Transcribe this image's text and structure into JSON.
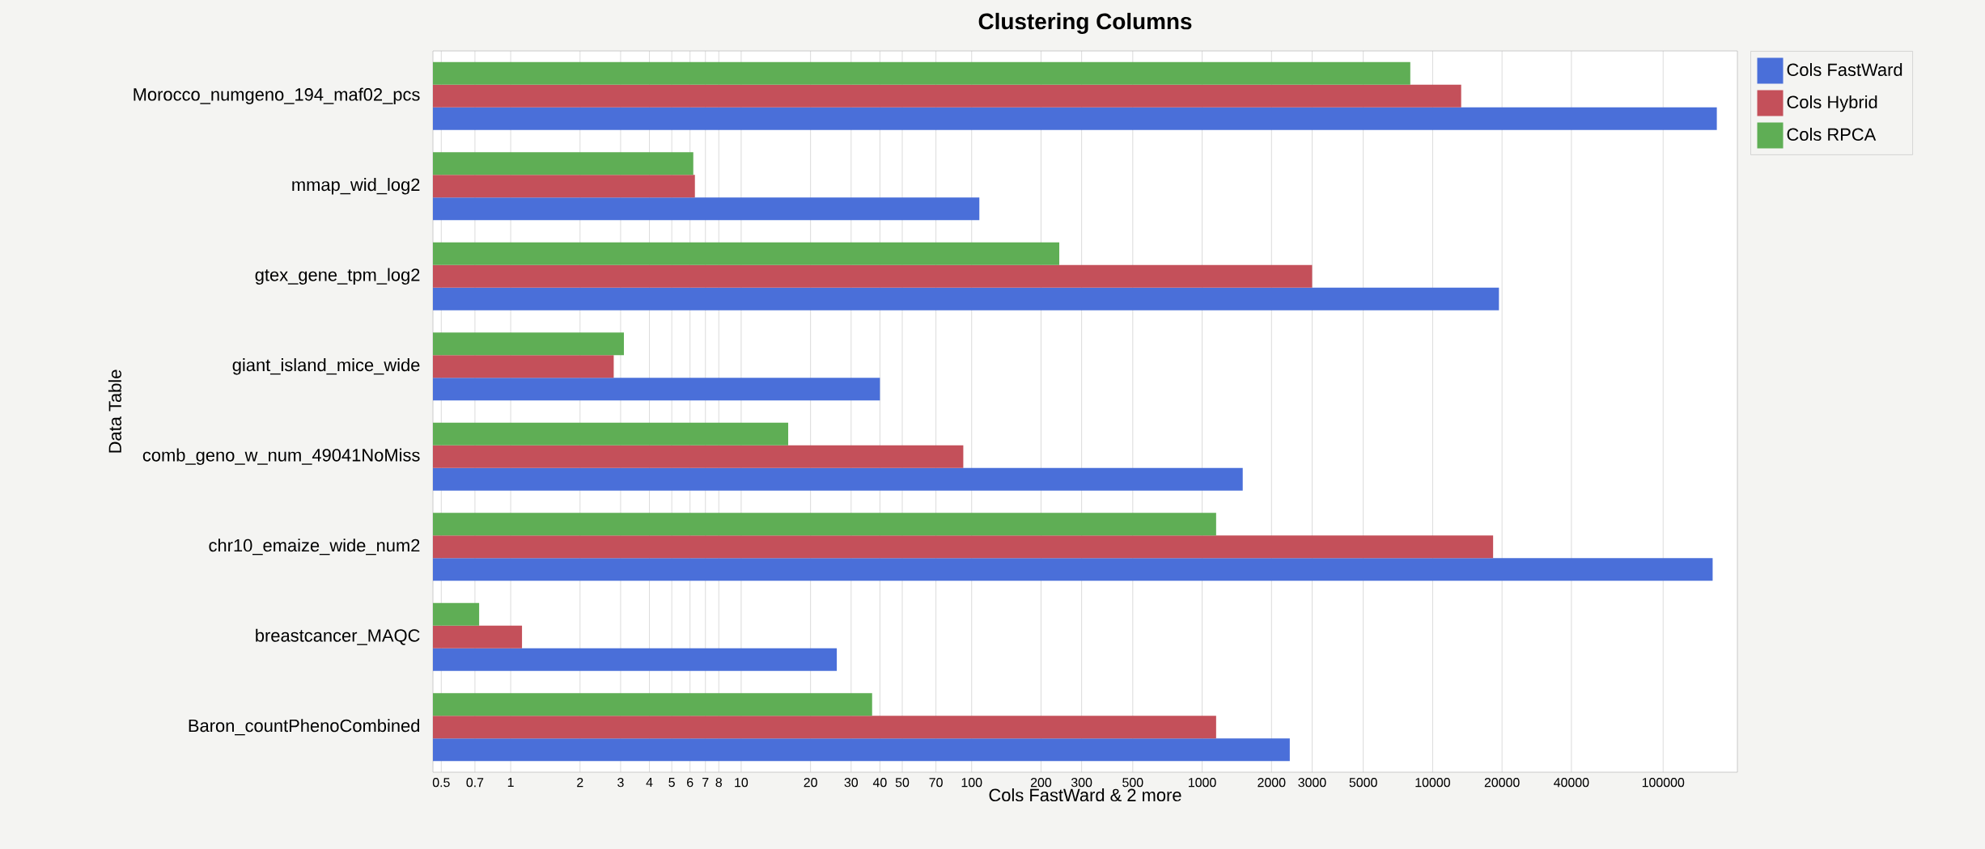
{
  "chart_data": {
    "type": "bar",
    "orientation": "horizontal",
    "title": "Clustering Columns",
    "xlabel": "Cols FastWard & 2 more",
    "ylabel": "Data Table",
    "categories": [
      "Morocco_numgeno_194_maf02_pcs",
      "mmap_wid_log2",
      "gtex_gene_tpm_log2",
      "giant_island_mice_wide",
      "comb_geno_w_num_49041NoMiss",
      "chr10_emaize_wide_num2",
      "breastcancer_MAQC",
      "Baron_countPhenoCombined"
    ],
    "series": [
      {
        "name": "Cols FastWard",
        "color": "#4a6fd9",
        "values": [
          171000,
          108,
          19400,
          40,
          1500,
          164000,
          26,
          2400
        ]
      },
      {
        "name": "Cols Hybrid",
        "color": "#c4505a",
        "values": [
          13300,
          6.3,
          3000,
          2.8,
          92,
          18300,
          1.12,
          1150
        ]
      },
      {
        "name": "Cols RPCA",
        "color": "#5fae55",
        "values": [
          8000,
          6.2,
          240,
          3.1,
          16,
          1150,
          0.73,
          37
        ]
      }
    ],
    "log": "x",
    "xlim": [
      0.46,
      210000
    ],
    "xticks": [
      0.5,
      0.7,
      1,
      2,
      3,
      4,
      5,
      6,
      7,
      8,
      10,
      20,
      30,
      40,
      50,
      70,
      100,
      200,
      300,
      500,
      1000,
      2000,
      3000,
      5000,
      10000,
      20000,
      40000,
      100000
    ],
    "grid": "x",
    "legend": "top right"
  }
}
